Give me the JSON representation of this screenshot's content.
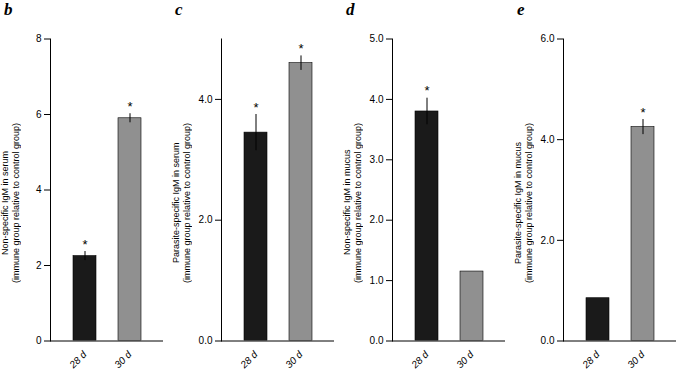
{
  "chart_data": [
    {
      "type": "bar",
      "title": "b",
      "ylabel": "Non-specific IgM in serum\n(immune group relative to control group)",
      "categories": [
        "28 d",
        "30 d"
      ],
      "values": [
        2.25,
        5.9
      ],
      "errors": [
        0.12,
        0.12
      ],
      "colors": [
        "#1a1a1a",
        "#909090"
      ],
      "ylim": [
        0,
        8
      ],
      "yticks": [
        0,
        2,
        4,
        6,
        8
      ],
      "annotations": [
        "*",
        "*"
      ],
      "grid": false
    },
    {
      "type": "bar",
      "title": "c",
      "ylabel": "Parasite-specific IgM in serum\n(immune group relative to control group)",
      "categories": [
        "28 d",
        "30 d"
      ],
      "values": [
        3.45,
        4.6
      ],
      "errors": [
        0.3,
        0.12
      ],
      "colors": [
        "#1a1a1a",
        "#909090"
      ],
      "ylim": [
        0,
        5
      ],
      "yticks": [
        0,
        2,
        4
      ],
      "annotations": [
        "*",
        "*"
      ],
      "grid": false
    },
    {
      "type": "bar",
      "title": "d",
      "ylabel": "Non-specific IgM in mucus\n(immune group relative to control group)",
      "categories": [
        "28 d",
        "30 d"
      ],
      "values": [
        3.8,
        1.15
      ],
      "errors": [
        0.22,
        0.0
      ],
      "colors": [
        "#1a1a1a",
        "#909090"
      ],
      "ylim": [
        0,
        5
      ],
      "yticks": [
        0,
        1,
        2,
        3,
        4,
        5
      ],
      "annotations": [
        "*",
        null
      ],
      "grid": false
    },
    {
      "type": "bar",
      "title": "e",
      "ylabel": "Parasite-specific IgM in mucus\n(immune group relative to control group)",
      "categories": [
        "28 d",
        "30 d"
      ],
      "values": [
        0.85,
        4.25
      ],
      "errors": [
        0.0,
        0.15
      ],
      "colors": [
        "#1a1a1a",
        "#909090"
      ],
      "ylim": [
        0,
        6
      ],
      "yticks": [
        0,
        2,
        4,
        6
      ],
      "annotations": [
        null,
        "*"
      ],
      "grid": false
    }
  ]
}
